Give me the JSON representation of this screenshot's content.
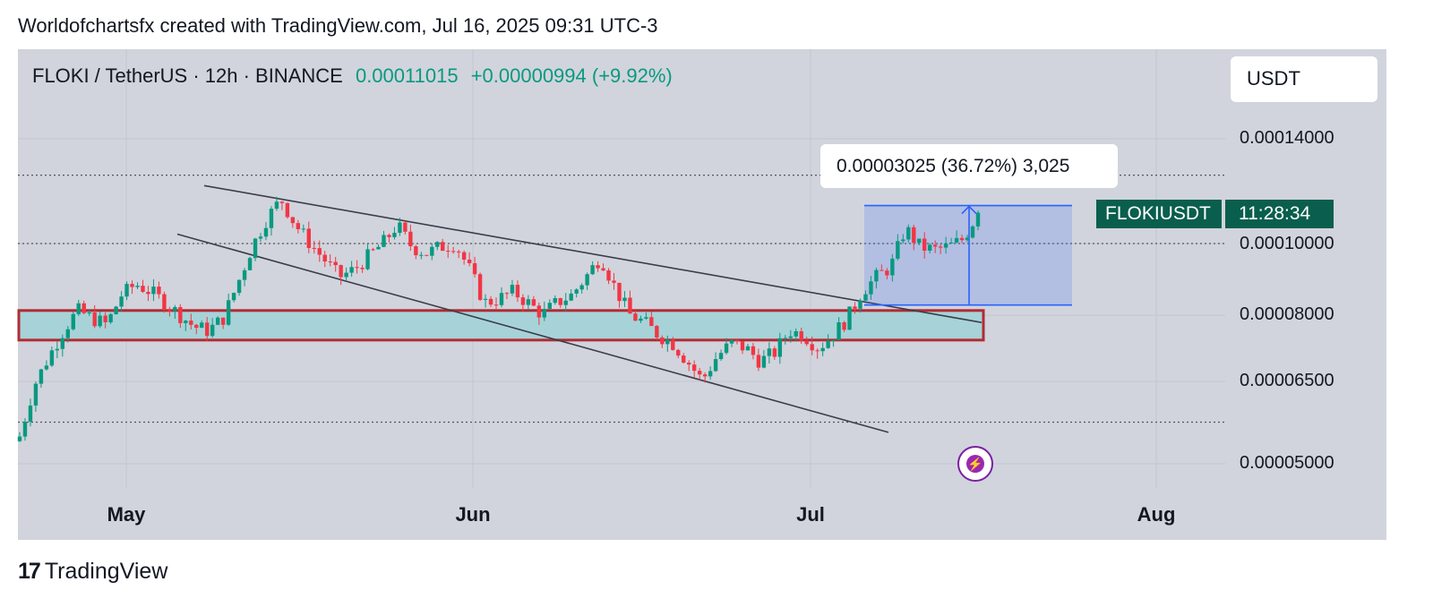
{
  "header": {
    "credit": "Worldofchartsfx created with TradingView.com, Jul 16, 2025 09:31 UTC-3"
  },
  "symbol": {
    "label": "FLOKI / TetherUS · 12h · BINANCE",
    "price": "0.00011015",
    "change": "+0.00000994 (+9.92%)"
  },
  "currency_button": "USDT",
  "ticker_badge": {
    "name": "FLOKIUSDT",
    "countdown": "11:28:34"
  },
  "measure_label": "0.00003025 (36.72%) 3,025",
  "footer": {
    "brand": "TradingView"
  },
  "colors": {
    "up": "#089981",
    "down": "#f23645",
    "zone_fill": "#a7d3d8",
    "zone_border": "#b22b33",
    "measure": "#2962ff",
    "badge": "#0a5e4d",
    "background": "#d1d4dc"
  },
  "chart_data": {
    "type": "candlestick",
    "interval": "12h",
    "scale": "log",
    "price_axis_ticks": [
      "0.00014000",
      "0.00010000",
      "0.00008000",
      "0.00006500",
      "0.00005000"
    ],
    "time_axis_ticks": [
      "May",
      "Jun",
      "Jul",
      "Aug"
    ],
    "candles_close": [
      5.45e-05,
      6.4e-05,
      7e-05,
      7.6e-05,
      8.1e-05,
      7.9e-05,
      7.75e-05,
      8.5e-05,
      8.8e-05,
      8.6e-05,
      8.3e-05,
      8e-05,
      7.7e-05,
      7.6e-05,
      7.9e-05,
      8.8e-05,
      9.9e-05,
      0.000108,
      0.000115,
      0.000106,
      0.0001,
      9.5e-05,
      9e-05,
      9.2e-05,
      9.6e-05,
      0.0001,
      0.000106,
      9.9e-05,
      9.7e-05,
      9.9e-05,
      0.0001,
      9.2e-05,
      8.3e-05,
      8.4e-05,
      8.6e-05,
      8.3e-05,
      8e-05,
      8.3e-05,
      8.5e-05,
      9e-05,
      9.6e-05,
      8.7e-05,
      8e-05,
      7.8e-05,
      7.5e-05,
      7.3e-05,
      6.9e-05,
      6.5e-05,
      7e-05,
      7.3e-05,
      7.2e-05,
      6.9e-05,
      7.1e-05,
      7.6e-05,
      7.5e-05,
      7.2e-05,
      7.5e-05,
      7.9e-05,
      8.6e-05,
      9e-05,
      9.3e-05,
      0.000105,
      9.9e-05,
      9.8e-05,
      9.9e-05,
      0.0001015,
      0.0001102
    ],
    "horizontal_zone": [
      7.38e-05,
      8.1e-05
    ],
    "descending_channel": {
      "upper": [
        [
          0.00012,
          7.8e-05
        ]
      ],
      "lower": [
        [
          0.000103,
          5.52e-05
        ]
      ]
    },
    "dotted_levels": [
      0.000124,
      0.0001,
      5.7e-05
    ],
    "measure": {
      "from": 8.24e-05,
      "to": 0.0001127,
      "change": "0.00003025",
      "percent": "36.72%",
      "bars": "3,025"
    }
  }
}
